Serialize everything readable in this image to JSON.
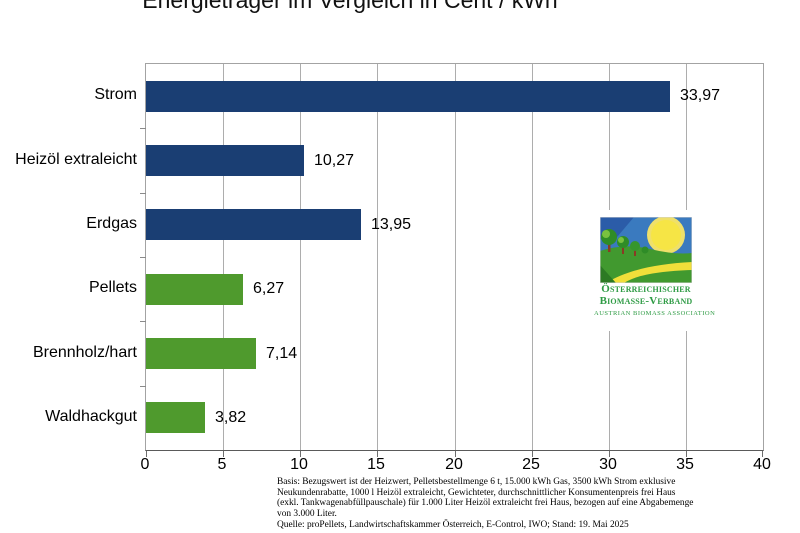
{
  "title": "Energieträger im Vergleich in Cent / kWh",
  "chart_data": {
    "type": "bar",
    "orientation": "horizontal",
    "title": "Energieträger im Vergleich in Cent / kWh",
    "categories": [
      "Strom",
      "Heizöl extraleicht",
      "Erdgas",
      "Pellets",
      "Brennholz/hart",
      "Waldhackgut"
    ],
    "values": [
      33.97,
      10.27,
      13.95,
      6.27,
      7.14,
      3.82
    ],
    "value_labels": [
      "33,97",
      "10,27",
      "13,95",
      "6,27",
      "7,14",
      "3,82"
    ],
    "bar_colors": [
      "#1a3e73",
      "#1a3e73",
      "#1a3e73",
      "#4f9a2d",
      "#4f9a2d",
      "#4f9a2d"
    ],
    "xlim": [
      0,
      40
    ],
    "xticks": [
      0,
      5,
      10,
      15,
      20,
      25,
      30,
      35,
      40
    ],
    "xlabel": "",
    "ylabel": "",
    "grid": "vertical",
    "legend": "none"
  },
  "colors": {
    "navy_bar": "#1a3e73",
    "green_bar": "#4f9a2d",
    "gridline": "#adadad",
    "plot_border": "#a3a3a3",
    "logo_green": "#2e9b44"
  },
  "logo": {
    "line1": "Österreichischer",
    "line2": "Biomasse-Verband",
    "line3": "Austrian Biomass Association"
  },
  "footnote": {
    "lines": [
      "Basis: Bezugswert ist der Heizwert, Pelletsbestellmenge 6 t, 15.000 kWh Gas, 3500 kWh Strom exklusive",
      "Neukundenrabatte, 1000 l Heizöl extraleicht, Gewichteter, durchschnittlicher Konsumentenpreis frei Haus",
      "(exkl. Tankwagenabfüllpauschale) für 1.000 Liter Heizöl extraleicht frei Haus, bezogen auf eine Abgabemenge",
      "von 3.000 Liter.",
      "Quelle: proPellets, Landwirtschaftskammer Österreich, E-Control, IWO; Stand: 19. Mai 2025"
    ]
  }
}
